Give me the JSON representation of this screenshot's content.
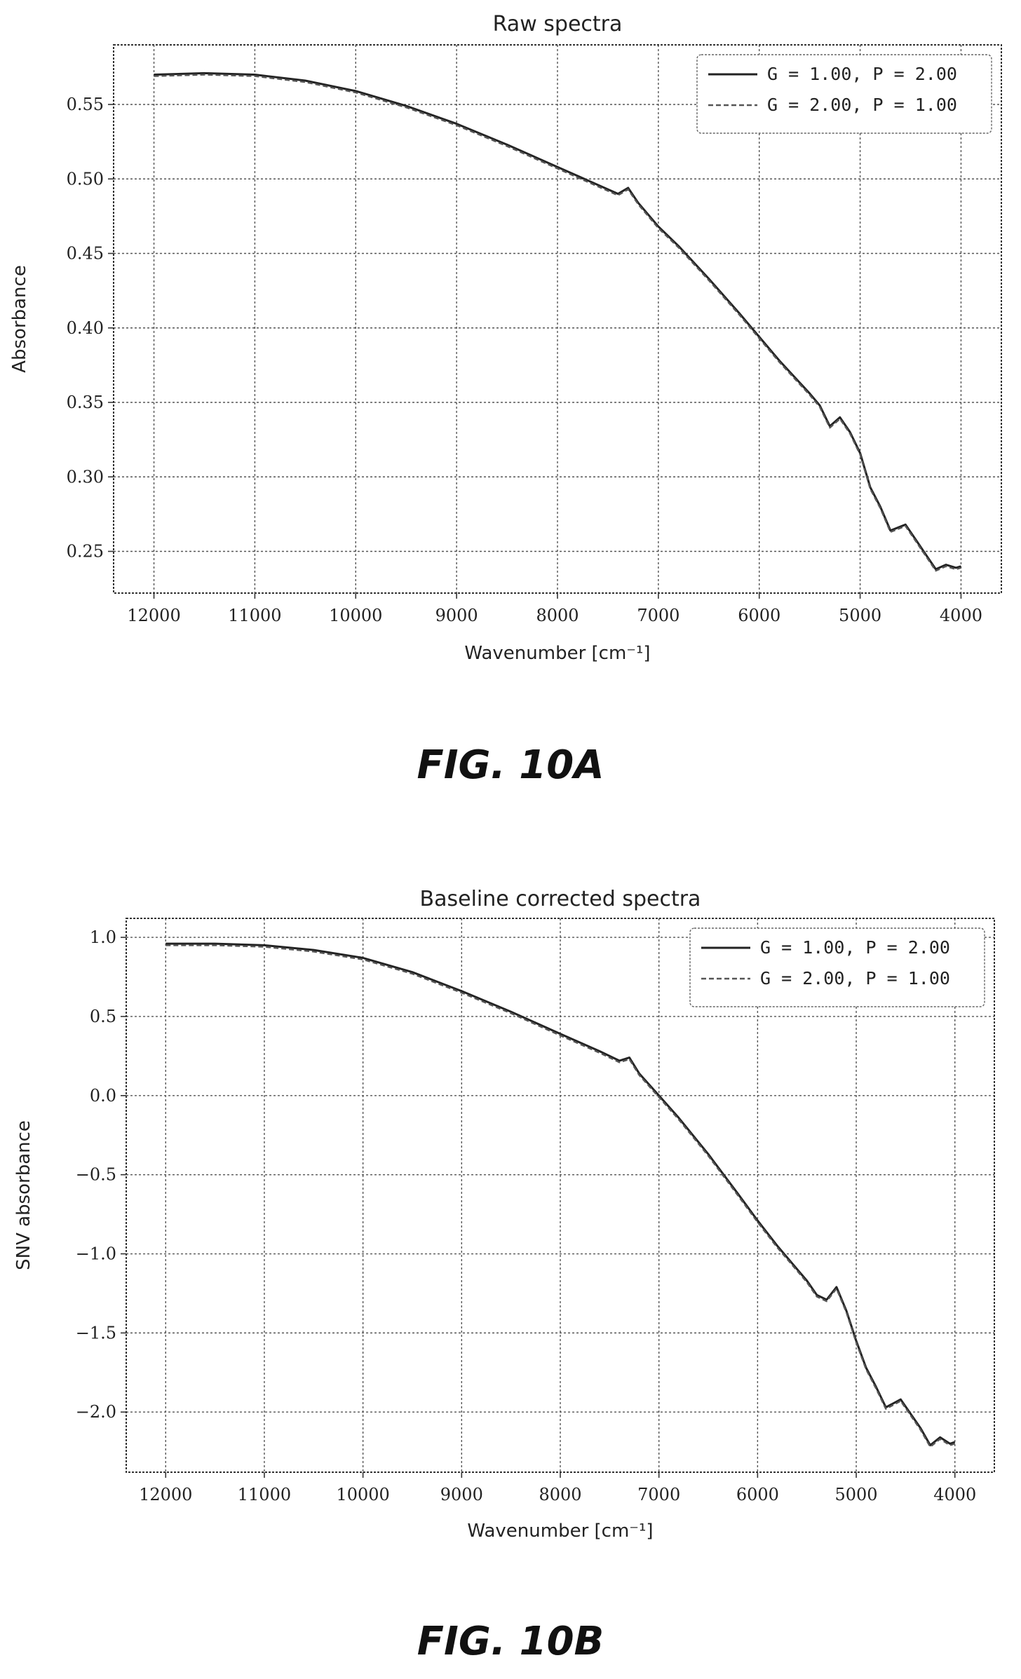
{
  "figures": [
    {
      "caption": "FIG. 10A"
    },
    {
      "caption": "FIG. 10B"
    }
  ],
  "chart_data": [
    {
      "type": "line",
      "title": "Raw spectra",
      "xlabel": "Wavenumber [cm⁻¹]",
      "ylabel": "Absorbance",
      "xlim": [
        12400,
        3600
      ],
      "x_inverted": true,
      "ylim": [
        0.222,
        0.59
      ],
      "x_ticks": [
        12000,
        11000,
        10000,
        9000,
        8000,
        7000,
        6000,
        5000,
        4000
      ],
      "y_ticks": [
        0.25,
        0.3,
        0.35,
        0.4,
        0.45,
        0.5,
        0.55
      ],
      "y_tick_labels": [
        "0.25",
        "0.30",
        "0.35",
        "0.40",
        "0.45",
        "0.50",
        "0.55"
      ],
      "grid": true,
      "legend_position": "top-right",
      "series": [
        {
          "name": "G = 1.00, P = 2.00",
          "style": "solid",
          "x": [
            12000,
            11500,
            11000,
            10500,
            10000,
            9500,
            9000,
            8500,
            8000,
            7600,
            7400,
            7300,
            7200,
            7000,
            6800,
            6500,
            6200,
            6000,
            5800,
            5500,
            5400,
            5300,
            5200,
            5100,
            5000,
            4900,
            4800,
            4700,
            4550,
            4450,
            4350,
            4250,
            4150,
            4050,
            4000
          ],
          "y": [
            0.57,
            0.571,
            0.57,
            0.566,
            0.559,
            0.549,
            0.537,
            0.523,
            0.508,
            0.496,
            0.49,
            0.494,
            0.484,
            0.468,
            0.455,
            0.433,
            0.41,
            0.394,
            0.378,
            0.356,
            0.348,
            0.334,
            0.34,
            0.33,
            0.316,
            0.293,
            0.28,
            0.264,
            0.268,
            0.258,
            0.248,
            0.238,
            0.241,
            0.239,
            0.24
          ]
        },
        {
          "name": "G = 2.00, P = 1.00",
          "style": "dashed",
          "x": [
            12000,
            11500,
            11000,
            10500,
            10000,
            9500,
            9000,
            8500,
            8000,
            7600,
            7400,
            7300,
            7200,
            7000,
            6800,
            6500,
            6200,
            6000,
            5800,
            5500,
            5400,
            5300,
            5200,
            5100,
            5000,
            4900,
            4800,
            4700,
            4550,
            4450,
            4350,
            4250,
            4150,
            4050,
            4000
          ],
          "y": [
            0.569,
            0.57,
            0.569,
            0.565,
            0.558,
            0.548,
            0.536,
            0.522,
            0.507,
            0.495,
            0.489,
            0.493,
            0.483,
            0.467,
            0.454,
            0.432,
            0.409,
            0.393,
            0.377,
            0.355,
            0.347,
            0.333,
            0.339,
            0.329,
            0.315,
            0.292,
            0.279,
            0.263,
            0.267,
            0.257,
            0.247,
            0.237,
            0.24,
            0.238,
            0.239
          ]
        }
      ]
    },
    {
      "type": "line",
      "title": "Baseline corrected spectra",
      "xlabel": "Wavenumber [cm⁻¹]",
      "ylabel": "SNV absorbance",
      "xlim": [
        12400,
        3600
      ],
      "x_inverted": true,
      "ylim": [
        -2.38,
        1.12
      ],
      "x_ticks": [
        12000,
        11000,
        10000,
        9000,
        8000,
        7000,
        6000,
        5000,
        4000
      ],
      "y_ticks": [
        -2.0,
        -1.5,
        -1.0,
        -0.5,
        0.0,
        0.5,
        1.0
      ],
      "y_tick_labels": [
        "−2.0",
        "−1.5",
        "−1.0",
        "−0.5",
        "0.0",
        "0.5",
        "1.0"
      ],
      "grid": true,
      "legend_position": "top-right",
      "series": [
        {
          "name": "G = 1.00, P = 2.00",
          "style": "solid",
          "x": [
            12000,
            11500,
            11000,
            10500,
            10000,
            9500,
            9000,
            8500,
            8000,
            7600,
            7400,
            7300,
            7200,
            7000,
            6800,
            6500,
            6200,
            6000,
            5800,
            5500,
            5400,
            5300,
            5200,
            5100,
            5000,
            4900,
            4800,
            4700,
            4550,
            4450,
            4350,
            4250,
            4150,
            4050,
            4000
          ],
          "y": [
            0.96,
            0.96,
            0.95,
            0.92,
            0.87,
            0.78,
            0.66,
            0.53,
            0.39,
            0.28,
            0.22,
            0.24,
            0.14,
            0.0,
            -0.14,
            -0.37,
            -0.62,
            -0.79,
            -0.95,
            -1.17,
            -1.26,
            -1.29,
            -1.21,
            -1.36,
            -1.55,
            -1.72,
            -1.84,
            -1.97,
            -1.92,
            -2.01,
            -2.1,
            -2.21,
            -2.16,
            -2.2,
            -2.19
          ]
        },
        {
          "name": "G = 2.00, P = 1.00",
          "style": "dashed",
          "x": [
            12000,
            11500,
            11000,
            10500,
            10000,
            9500,
            9000,
            8500,
            8000,
            7600,
            7400,
            7300,
            7200,
            7000,
            6800,
            6500,
            6200,
            6000,
            5800,
            5500,
            5400,
            5300,
            5200,
            5100,
            5000,
            4900,
            4800,
            4700,
            4550,
            4450,
            4350,
            4250,
            4150,
            4050,
            4000
          ],
          "y": [
            0.95,
            0.95,
            0.94,
            0.91,
            0.86,
            0.77,
            0.65,
            0.52,
            0.38,
            0.27,
            0.21,
            0.23,
            0.13,
            -0.01,
            -0.15,
            -0.38,
            -0.63,
            -0.8,
            -0.96,
            -1.18,
            -1.27,
            -1.3,
            -1.22,
            -1.37,
            -1.56,
            -1.73,
            -1.85,
            -1.98,
            -1.93,
            -2.02,
            -2.11,
            -2.22,
            -2.17,
            -2.21,
            -2.2
          ]
        }
      ]
    }
  ]
}
